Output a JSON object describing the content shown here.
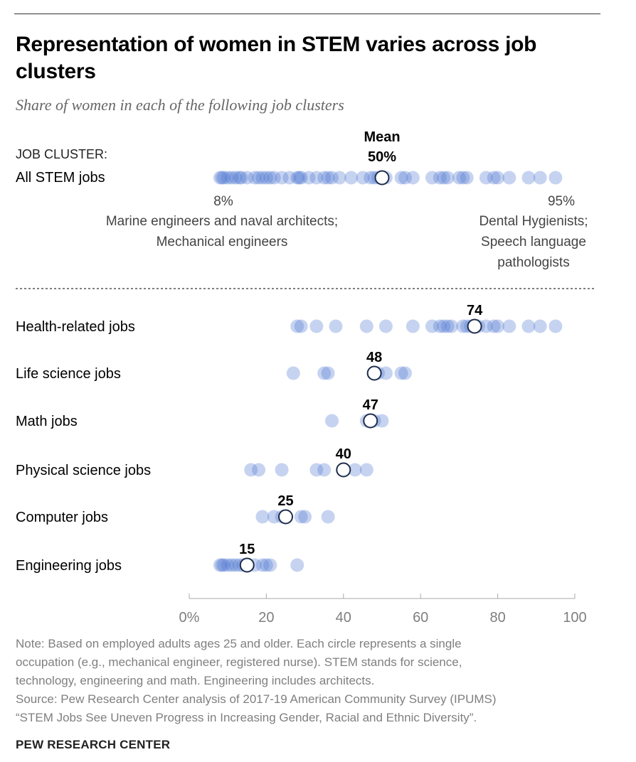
{
  "title": "Representation of women in STEM varies across job clusters",
  "subtitle": "Share of women in each of the following job clusters",
  "note_lines": [
    "Note: Based on employed adults ages 25 and older. Each circle represents a single",
    "occupation (e.g., mechanical engineer, registered nurse). STEM stands for science,",
    "technology, engineering and math. Engineering includes architects.",
    "Source: Pew Research Center analysis of 2017-19 American Community Survey (IPUMS)",
    "“STEM Jobs See Uneven Progress in Increasing Gender, Racial and Ethnic Diversity”."
  ],
  "brand": "PEW RESEARCH CENTER",
  "colors": {
    "dot": "#4f76cf",
    "dot_opacity": 0.32,
    "mean_fill": "#ffffff",
    "mean_stroke": "#1d2c4a",
    "axis": "#aaaaaa",
    "axis_label": "#7f7f7f",
    "divider": "#555555"
  },
  "chart_data": {
    "type": "scatter",
    "xlim": [
      0,
      100
    ],
    "xticks": [
      0,
      20,
      40,
      60,
      80,
      100
    ],
    "xtick_labels": [
      "0%",
      "20",
      "40",
      "60",
      "80",
      "100"
    ],
    "cluster_header": "JOB CLUSTER:",
    "overall": {
      "label": "All STEM jobs",
      "mean": 50,
      "mean_label_line1": "Mean",
      "mean_label_line2": "50%",
      "min_label": "8%",
      "min_note": [
        "Marine engineers and naval architects;",
        "Mechanical engineers"
      ],
      "max_label": "95%",
      "max_note": [
        "Dental Hygienists;",
        "Speech language",
        "pathologists"
      ],
      "values": [
        8,
        8.5,
        9,
        10,
        11,
        12,
        13,
        13.5,
        15,
        17,
        18,
        19,
        20,
        21,
        22,
        24,
        26,
        28,
        28.5,
        29,
        31,
        33,
        35,
        36,
        37,
        39,
        42,
        45,
        47,
        48,
        49,
        51,
        55,
        56,
        58,
        63,
        65,
        66,
        67,
        70,
        71,
        72,
        77,
        79,
        80,
        83,
        88,
        91,
        95
      ]
    },
    "clusters": [
      {
        "label": "Health-related jobs",
        "mean": 74,
        "mean_label": "74",
        "values": [
          28,
          29,
          33,
          38,
          46,
          51,
          58,
          63,
          65,
          66,
          67,
          68,
          71,
          72,
          73,
          75,
          77,
          79,
          80,
          83,
          88,
          91,
          95
        ]
      },
      {
        "label": "Life science jobs",
        "mean": 48,
        "mean_label": "48",
        "values": [
          27,
          35,
          36,
          49,
          51,
          55,
          56
        ]
      },
      {
        "label": "Math jobs",
        "mean": 47,
        "mean_label": "47",
        "values": [
          37,
          46,
          48,
          50
        ]
      },
      {
        "label": "Physical science jobs",
        "mean": 40,
        "mean_label": "40",
        "values": [
          16,
          18,
          24,
          33,
          35,
          43,
          46
        ]
      },
      {
        "label": "Computer jobs",
        "mean": 25,
        "mean_label": "25",
        "values": [
          19,
          22,
          24,
          29,
          30,
          36
        ]
      },
      {
        "label": "Engineering jobs",
        "mean": 15,
        "mean_label": "15",
        "values": [
          8,
          8.5,
          9,
          10,
          11,
          12,
          13,
          14,
          17,
          19,
          20,
          21,
          28
        ]
      }
    ]
  }
}
